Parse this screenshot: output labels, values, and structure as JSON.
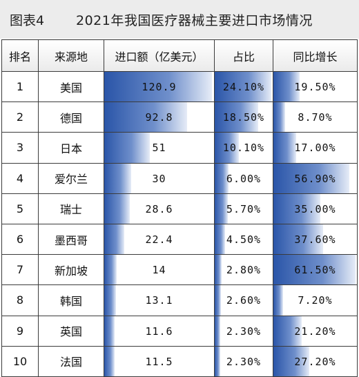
{
  "header": {
    "figure_label": "图表4",
    "title": "2021年我国医疗器械主要进口市场情况"
  },
  "columns": [
    "排名",
    "来源地",
    "进口额（亿美元）",
    "占比",
    "同比增长"
  ],
  "rows": [
    {
      "rank": "1",
      "country": "美国",
      "import": "120.9",
      "share": "24.10%",
      "growth": "19.50%"
    },
    {
      "rank": "2",
      "country": "德国",
      "import": "92.8",
      "share": "18.50%",
      "growth": "8.70%"
    },
    {
      "rank": "3",
      "country": "日本",
      "import": "51",
      "share": "10.10%",
      "growth": "17.00%"
    },
    {
      "rank": "4",
      "country": "爱尔兰",
      "import": "30",
      "share": "6.00%",
      "growth": "56.90%"
    },
    {
      "rank": "5",
      "country": "瑞士",
      "import": "28.6",
      "share": "5.70%",
      "growth": "35.00%"
    },
    {
      "rank": "6",
      "country": "墨西哥",
      "import": "22.4",
      "share": "4.50%",
      "growth": "37.60%"
    },
    {
      "rank": "7",
      "country": "新加坡",
      "import": "14",
      "share": "2.80%",
      "growth": "61.50%"
    },
    {
      "rank": "8",
      "country": "韩国",
      "import": "13.1",
      "share": "2.60%",
      "growth": "7.20%"
    },
    {
      "rank": "9",
      "country": "英国",
      "import": "11.6",
      "share": "2.30%",
      "growth": "21.20%"
    },
    {
      "rank": "10",
      "country": "法国",
      "import": "11.5",
      "share": "2.30%",
      "growth": "27.20%"
    }
  ],
  "chart_data": {
    "type": "table",
    "title": "2021年我国医疗器械主要进口市场情况",
    "categories": [
      "美国",
      "德国",
      "日本",
      "爱尔兰",
      "瑞士",
      "墨西哥",
      "新加坡",
      "韩国",
      "英国",
      "法国"
    ],
    "series": [
      {
        "name": "进口额（亿美元）",
        "values": [
          120.9,
          92.8,
          51,
          30,
          28.6,
          22.4,
          14,
          13.1,
          11.6,
          11.5
        ]
      },
      {
        "name": "占比",
        "values": [
          24.1,
          18.5,
          10.1,
          6.0,
          5.7,
          4.5,
          2.8,
          2.6,
          2.3,
          2.3
        ]
      },
      {
        "name": "同比增长",
        "values": [
          19.5,
          8.7,
          17.0,
          56.9,
          35.0,
          37.6,
          61.5,
          7.2,
          21.2,
          27.2
        ]
      }
    ],
    "bar_color": "#2a55a8"
  }
}
